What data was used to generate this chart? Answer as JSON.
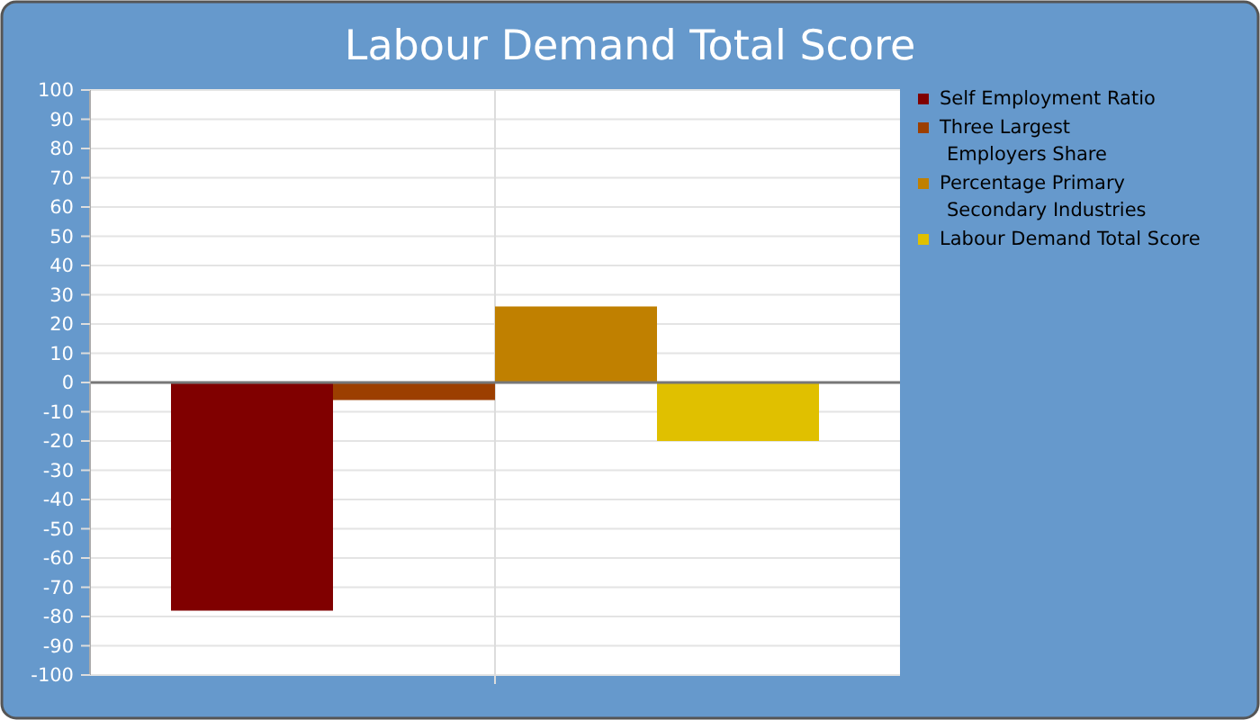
{
  "chart_data": {
    "type": "bar",
    "title": "Labour Demand Total Score",
    "categories": [
      null
    ],
    "series": [
      {
        "name": "Self Employment Ratio",
        "color": "#800000",
        "values": [
          -78
        ]
      },
      {
        "name": "Three Largest Employers Share",
        "color": "#9c3f00",
        "values": [
          -6
        ]
      },
      {
        "name": "Percentage Primary Secondary Industries",
        "color": "#c08000",
        "values": [
          26
        ]
      },
      {
        "name": "Labour Demand Total Score",
        "color": "#e0c000",
        "values": [
          -20
        ]
      }
    ],
    "ylim": [
      -100,
      100
    ],
    "yticks": [
      -100,
      -90,
      -80,
      -70,
      -60,
      -50,
      -40,
      -30,
      -20,
      -10,
      0,
      10,
      20,
      30,
      40,
      50,
      60,
      70,
      80,
      90,
      100
    ],
    "grid": true,
    "legend": "right"
  }
}
